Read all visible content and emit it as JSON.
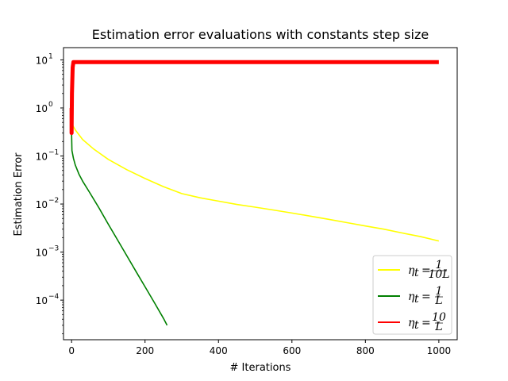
{
  "chart_data": {
    "type": "line",
    "title": "Estimation error evaluations with constants step size",
    "xlabel": "# Iterations",
    "ylabel": "Estimation Error",
    "xlim": [
      -22,
      1050
    ],
    "ylim": [
      1.5e-05,
      18
    ],
    "yscale": "log",
    "xticks": [
      0,
      200,
      400,
      600,
      800,
      1000
    ],
    "xtick_labels": [
      "0",
      "200",
      "400",
      "600",
      "800",
      "1000"
    ],
    "yticks": [
      0.0001,
      0.001,
      0.01,
      0.1,
      1,
      10
    ],
    "ytick_labels": [
      "10",
      "10",
      "10",
      "10",
      "10",
      "10"
    ],
    "ytick_exps": [
      "−4",
      "−3",
      "−2",
      "−1",
      "0",
      "1"
    ],
    "grid": false,
    "legend_position": "bottom-right",
    "series": [
      {
        "name": "η_t = 1/(10L)",
        "legend_main": "η",
        "legend_sub": "t",
        "legend_eq": "=",
        "legend_num": "1",
        "legend_den": "10L",
        "color": "#ffff00",
        "x": [
          0,
          0,
          2,
          10,
          30,
          60,
          100,
          150,
          200,
          250,
          300,
          350,
          400,
          450,
          500,
          550,
          600,
          650,
          700,
          750,
          800,
          850,
          900,
          950,
          1000
        ],
        "y": [
          1.0,
          0.55,
          0.45,
          0.35,
          0.22,
          0.14,
          0.085,
          0.052,
          0.034,
          0.023,
          0.0165,
          0.0135,
          0.0115,
          0.0098,
          0.0086,
          0.0075,
          0.0065,
          0.0056,
          0.0048,
          0.0041,
          0.0035,
          0.003,
          0.0025,
          0.0021,
          0.0017
        ]
      },
      {
        "name": "η_t = 1/L",
        "legend_main": "η",
        "legend_sub": "t",
        "legend_eq": "=",
        "legend_num": "1",
        "legend_den": "L",
        "color": "#008000",
        "x": [
          0,
          0,
          1,
          5,
          10,
          20,
          30,
          50,
          75,
          100,
          125,
          150,
          175,
          200,
          225,
          250,
          260
        ],
        "y": [
          1.0,
          0.3,
          0.13,
          0.09,
          0.065,
          0.042,
          0.03,
          0.017,
          0.0082,
          0.0038,
          0.0018,
          0.00085,
          0.0004,
          0.00019,
          9e-05,
          4.2e-05,
          3e-05
        ]
      },
      {
        "name": "η_t = 10/L",
        "legend_main": "η",
        "legend_sub": "t",
        "legend_eq": "=",
        "legend_num": "10",
        "legend_den": "L",
        "color": "#ff0000",
        "x": [
          0,
          0,
          1,
          3,
          5,
          1000
        ],
        "y": [
          1.0,
          0.3,
          2.0,
          7.0,
          9.0,
          9.0
        ]
      }
    ]
  }
}
